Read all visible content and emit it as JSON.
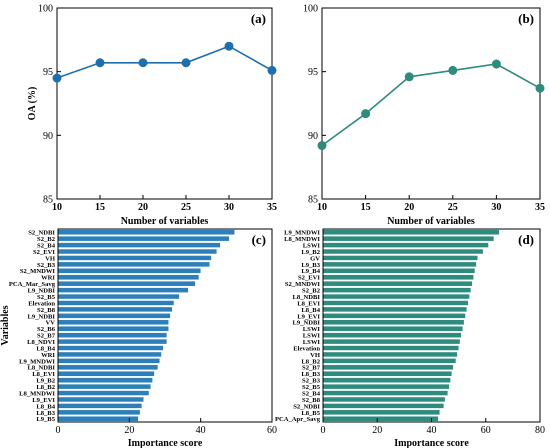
{
  "chart_data": [
    {
      "panel": "(a)",
      "type": "line",
      "xlabel": "Number of variables",
      "ylabel": "OA (%)",
      "x": [
        10,
        15,
        20,
        25,
        30,
        35
      ],
      "values": [
        94.5,
        95.7,
        95.7,
        95.7,
        97.0,
        95.1
      ],
      "xlim": [
        10,
        35
      ],
      "ylim": [
        85,
        100
      ],
      "xticks": [
        "10",
        "15",
        "20",
        "25",
        "30",
        "35"
      ],
      "yticks": [
        "85",
        "90",
        "95",
        "100"
      ],
      "color": "#1f6fae"
    },
    {
      "panel": "(b)",
      "type": "line",
      "xlabel": "Number of variables",
      "ylabel": "",
      "x": [
        10,
        15,
        20,
        25,
        30,
        35
      ],
      "values": [
        89.2,
        91.7,
        94.6,
        95.1,
        95.6,
        93.7
      ],
      "xlim": [
        10,
        35
      ],
      "ylim": [
        85,
        100
      ],
      "xticks": [
        "10",
        "15",
        "20",
        "25",
        "30",
        "35"
      ],
      "yticks": [
        "85",
        "90",
        "95",
        "100"
      ],
      "color": "#2e8b7e"
    },
    {
      "panel": "(c)",
      "type": "bar",
      "orientation": "horizontal",
      "xlabel": "Importance score",
      "ylabel": "Variables",
      "xlim": [
        0,
        60
      ],
      "xticks": [
        "0",
        "20",
        "40",
        "60"
      ],
      "color": "#2c7fb8",
      "categories": [
        "S2_NDBI",
        "S2_B2",
        "S2_B4",
        "S2_EVI",
        "VH",
        "S2_B3",
        "S2_MNDWI",
        "WRI",
        "PCA_Mar_Savg",
        "L9_NDBI",
        "S2_B5",
        "Elevation",
        "S2_B8",
        "L9_NDBI",
        "VV",
        "S2_B6",
        "S2_B7",
        "L8_NDVI",
        "L8_B4",
        "WRI",
        "L9_MNDWI",
        "L8_NDBI",
        "L8_EVI",
        "L9_B2",
        "L8_B2",
        "L8_MNDWI",
        "L9_EVI",
        "L8_B4",
        "L8_B3",
        "L9_B5"
      ],
      "values": [
        49.5,
        48.0,
        45.5,
        44.5,
        43.0,
        42.5,
        40.0,
        39.5,
        38.5,
        36.5,
        34.0,
        32.5,
        32.0,
        31.5,
        31.0,
        31.0,
        30.5,
        30.5,
        29.5,
        29.0,
        28.5,
        28.0,
        27.0,
        26.5,
        26.0,
        25.5,
        24.0,
        23.5,
        23.0,
        22.5
      ]
    },
    {
      "panel": "(d)",
      "type": "bar",
      "orientation": "horizontal",
      "xlabel": "Importance score",
      "ylabel": "",
      "xlim": [
        0,
        80
      ],
      "xticks": [
        "0",
        "20",
        "40",
        "60",
        "80"
      ],
      "color": "#2e8b7e",
      "categories": [
        "L9_MNDWI",
        "L8_MNDWI",
        "LSWI",
        "L9_B2",
        "GV",
        "L9_B3",
        "L9_B4",
        "S2_EVI",
        "S2_MNDWI",
        "S2_B2",
        "L8_NDBI",
        "L8_EVI",
        "L8_B4",
        "L9_EVI",
        "L9_NDBI",
        "LSWI",
        "LSWI",
        "LSWI",
        "Elevation",
        "VH",
        "L8_B2",
        "S2_B7",
        "L8_B3",
        "S2_B3",
        "S2_B5",
        "S2_B4",
        "S2_B8",
        "S2_NDBI",
        "L8_B5",
        "PCA_Apr_Savg"
      ],
      "values": [
        65.0,
        63.0,
        61.0,
        59.0,
        57.0,
        56.5,
        56.0,
        55.5,
        55.0,
        54.5,
        54.0,
        53.5,
        53.0,
        52.5,
        52.0,
        51.5,
        51.0,
        50.5,
        50.0,
        49.5,
        49.0,
        48.0,
        47.5,
        47.0,
        46.5,
        46.0,
        45.0,
        44.5,
        43.0,
        42.5
      ]
    }
  ]
}
